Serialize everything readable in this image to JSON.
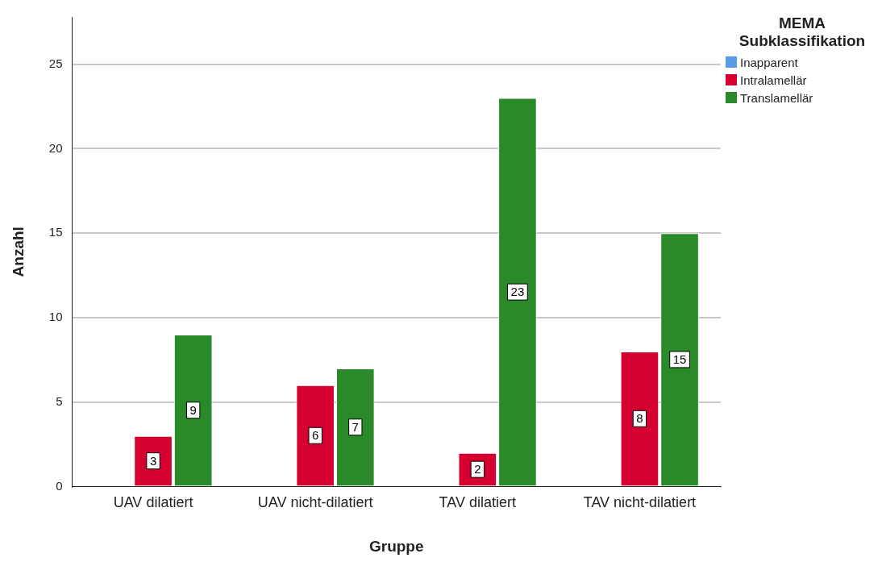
{
  "chart_data": {
    "type": "bar",
    "xlabel": "Gruppe",
    "ylabel": "Anzahl",
    "legend_title": "MEMA Subklassifikation",
    "categories": [
      "UAV dilatiert",
      "UAV nicht-dilatiert",
      "TAV dilatiert",
      "TAV nicht-dilatiert"
    ],
    "series": [
      {
        "name": "Inapparent",
        "color": "#5b9be6",
        "values": [
          null,
          null,
          null,
          null
        ]
      },
      {
        "name": "Intralamellär",
        "color": "#d5002f",
        "values": [
          3,
          6,
          2,
          8
        ]
      },
      {
        "name": "Translamellär",
        "color": "#2a8a2a",
        "values": [
          9,
          7,
          23,
          15
        ]
      }
    ],
    "ylim": [
      0,
      27.8
    ],
    "yticks": [
      0,
      5,
      10,
      15,
      20,
      25
    ],
    "grid": "y",
    "legend": "top right",
    "data_labels": true
  }
}
